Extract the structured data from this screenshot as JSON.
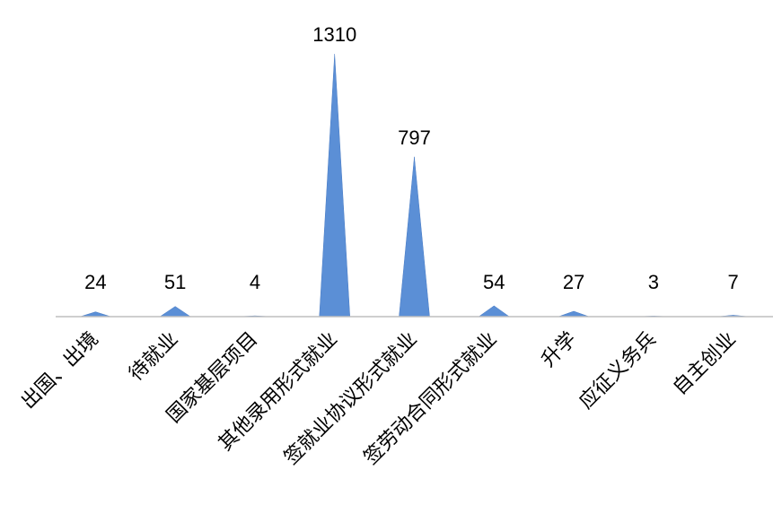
{
  "chart_data": {
    "type": "area",
    "subtype": "triangle-peaks",
    "categories": [
      "出国、出境",
      "待就业",
      "国家基层项目",
      "其他录用形式就业",
      "签就业协议形式就业",
      "签劳动合同形式就业",
      "升学",
      "应征义务兵",
      "自主创业"
    ],
    "values": [
      24,
      51,
      4,
      1310,
      797,
      54,
      27,
      3,
      7
    ],
    "data_labels": [
      "24",
      "51",
      "4",
      "1310",
      "797",
      "54",
      "27",
      "3",
      "7"
    ],
    "title": "",
    "xlabel": "",
    "ylabel": "",
    "ylim": [
      0,
      1400
    ],
    "grid": false,
    "legend": "none",
    "axis_color": "#bfbfbf",
    "series_color": "#5b8fd6",
    "series_stroke": "#4a7cc4"
  }
}
